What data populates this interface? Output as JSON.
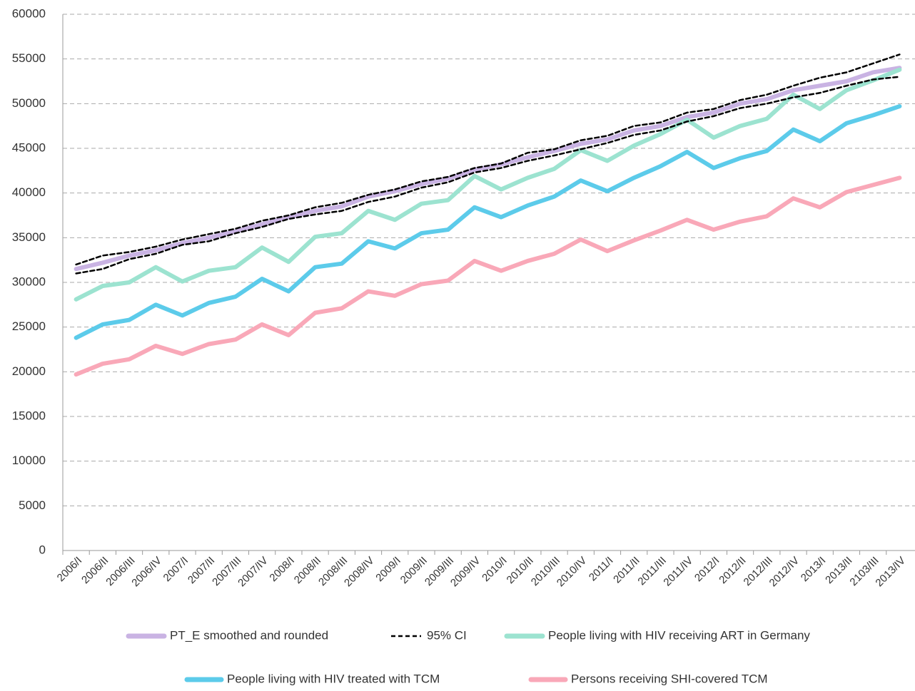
{
  "chart_data": {
    "type": "line",
    "categories": [
      "2006/I",
      "2006/II",
      "2006/III",
      "2006/IV",
      "2007/I",
      "2007/II",
      "2007/III",
      "2007/IV",
      "2008/I",
      "2008/II",
      "2008/III",
      "2008/IV",
      "2009/I",
      "2009/II",
      "2009/III",
      "2009/IV",
      "2010/I",
      "2010/II",
      "2010/III",
      "2010/IV",
      "2011/I",
      "2011/II",
      "2011/III",
      "2011/IV",
      "2012/I",
      "2012/II",
      "2012/III",
      "2012/IV",
      "2013/I",
      "2013/II",
      "2103/III",
      "2013/IV"
    ],
    "series": [
      {
        "name": "PT_E smoothed and rounded",
        "color": "#c9b3e3",
        "values": [
          31500,
          32200,
          33000,
          33600,
          34400,
          35000,
          35700,
          36500,
          37300,
          38000,
          38500,
          39600,
          40200,
          41000,
          41600,
          42600,
          43200,
          44000,
          44700,
          45500,
          46000,
          47000,
          47500,
          48500,
          49000,
          50000,
          50500,
          51500,
          52000,
          52500,
          53500,
          54000
        ]
      },
      {
        "name": "95% CI",
        "color": "#000000",
        "dashed": true,
        "values": [
          32000,
          33000,
          33400,
          34000,
          34800,
          35400,
          36000,
          36900,
          37500,
          38400,
          38900,
          39800,
          40400,
          41300,
          41800,
          42800,
          43300,
          44500,
          44900,
          45900,
          46400,
          47500,
          47900,
          49000,
          49400,
          50400,
          51000,
          52000,
          52900,
          53500,
          54500,
          55500
        ],
        "values_lower": [
          31000,
          31500,
          32600,
          33200,
          34200,
          34600,
          35500,
          36200,
          37100,
          37600,
          38000,
          39000,
          39600,
          40600,
          41200,
          42300,
          42800,
          43600,
          44200,
          44900,
          45600,
          46500,
          47000,
          48000,
          48600,
          49500,
          50000,
          50700,
          51200,
          52000,
          52700,
          53000
        ]
      },
      {
        "name": "People living with HIV receiving ART in Germany",
        "color": "#9ce3d0",
        "values": [
          28100,
          29600,
          30000,
          31700,
          30100,
          31300,
          31700,
          33900,
          32300,
          35100,
          35500,
          38000,
          37000,
          38800,
          39200,
          41900,
          40400,
          41700,
          42700,
          44800,
          43600,
          45300,
          46600,
          48200,
          46200,
          47500,
          48300,
          51000,
          49400,
          51500,
          52600,
          53800
        ]
      },
      {
        "name": "People living with HIV treated with TCM",
        "color": "#5ccbea",
        "values": [
          23800,
          25300,
          25800,
          27500,
          26300,
          27700,
          28400,
          30400,
          29000,
          31700,
          32100,
          34600,
          33800,
          35500,
          35900,
          38400,
          37300,
          38600,
          39600,
          41400,
          40200,
          41700,
          43000,
          44600,
          42800,
          43900,
          44700,
          47100,
          45800,
          47800,
          48700,
          49700
        ]
      },
      {
        "name": "Persons receiving SHI-covered TCM",
        "color": "#f9a8b8",
        "values": [
          19700,
          20900,
          21400,
          22900,
          22000,
          23100,
          23600,
          25300,
          24100,
          26600,
          27100,
          29000,
          28500,
          29800,
          30200,
          32400,
          31300,
          32400,
          33200,
          34800,
          33500,
          34700,
          35800,
          37000,
          35900,
          36800,
          37400,
          39400,
          38400,
          40100,
          40900,
          41700
        ]
      }
    ],
    "ylim": [
      0,
      60000
    ],
    "yticks": [
      0,
      5000,
      10000,
      15000,
      20000,
      25000,
      30000,
      35000,
      40000,
      45000,
      50000,
      55000,
      60000
    ],
    "grid": true
  }
}
